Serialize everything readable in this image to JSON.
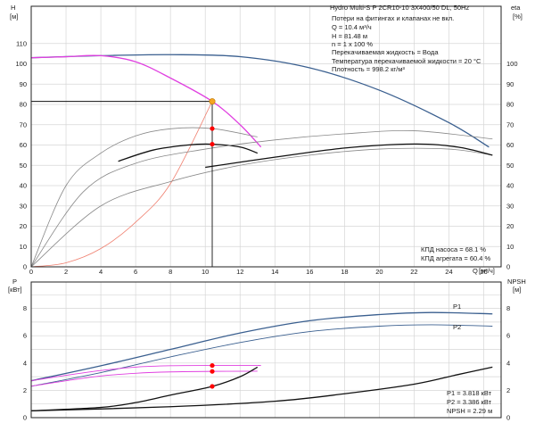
{
  "chart_data": [
    {
      "type": "line",
      "panel": "head-efficiency",
      "left_axis": {
        "label": "H",
        "unit": "[м]",
        "ylim": [
          0,
          120
        ],
        "ticks": [
          "0",
          "10",
          "20",
          "30",
          "40",
          "50",
          "60",
          "70",
          "80",
          "90",
          "100",
          "110"
        ]
      },
      "right_axis": {
        "label": "eta",
        "unit": "[%]",
        "ylim": [
          0,
          120
        ],
        "ticks": [
          "0",
          "10",
          "20",
          "30",
          "40",
          "50",
          "60",
          "70",
          "80",
          "90",
          "100"
        ]
      },
      "x_axis": {
        "label": "Q",
        "unit": "[м³/ч]",
        "xlim": [
          0,
          27
        ],
        "ticks": [
          "0",
          "2",
          "4",
          "6",
          "8",
          "10",
          "12",
          "14",
          "16",
          "18",
          "20",
          "22",
          "24",
          "26"
        ]
      },
      "grid": true,
      "info_lines": [
        "Hydro Multi-S P 2CR10-10 3X400/50 DL, 50Hz",
        "Потери на фитингах и клапанах не вкл.",
        "Q = 10.4 м³/ч",
        "H = 81.48 м",
        "n = 1 x 100 %",
        "Перекачиваемая жидкость = Вода",
        "Температура перекачиваемой жидкости = 20 °C",
        "Плотность = 998.2 кг/м³"
      ],
      "bottom_notes": [
        "КПД насоса = 68.1 %",
        "КПД агрегата = 60.4 %"
      ],
      "series": [
        {
          "role": "head-multi-pump",
          "color": "#3a5f8f",
          "points": [
            [
              0,
              103
            ],
            [
              4,
              104
            ],
            [
              8,
              104.5
            ],
            [
              12,
              103.5
            ],
            [
              16,
              98
            ],
            [
              20,
              87
            ],
            [
              24,
              71
            ],
            [
              26.3,
              59
            ]
          ]
        },
        {
          "role": "head-single-pump",
          "color": "#e040e0",
          "points": [
            [
              0,
              103
            ],
            [
              2,
              103.5
            ],
            [
              4,
              104
            ],
            [
              6,
              101
            ],
            [
              8,
              93
            ],
            [
              10.4,
              81.5
            ],
            [
              12,
              70
            ],
            [
              13.2,
              59
            ]
          ]
        },
        {
          "role": "system-curve",
          "color": "#f08070",
          "points": [
            [
              0,
              0
            ],
            [
              2,
              2
            ],
            [
              4,
              9
            ],
            [
              6,
              22
            ],
            [
              8,
              41
            ],
            [
              10.4,
              81.5
            ]
          ]
        },
        {
          "role": "efficiency-pump-1",
          "color": "#888888",
          "points": [
            [
              0,
              0
            ],
            [
              2,
              40
            ],
            [
              4,
              56
            ],
            [
              6,
              64.5
            ],
            [
              8,
              68
            ],
            [
              10.4,
              68.1
            ],
            [
              13,
              64
            ]
          ]
        },
        {
          "role": "efficiency-unit-1",
          "color": "#111111",
          "points": [
            [
              5,
              52
            ],
            [
              7,
              57.5
            ],
            [
              9,
              60
            ],
            [
              10.4,
              60.4
            ],
            [
              12,
              59
            ],
            [
              13,
              56
            ]
          ]
        },
        {
          "role": "efficiency-pump-2",
          "color": "#888888",
          "points": [
            [
              0,
              0
            ],
            [
              3,
              37
            ],
            [
              6,
              51
            ],
            [
              10,
              58
            ],
            [
              14,
              62.5
            ],
            [
              18,
              65.5
            ],
            [
              22,
              67
            ],
            [
              26.5,
              63
            ]
          ]
        },
        {
          "role": "efficiency-pump-3",
          "color": "#888888",
          "points": [
            [
              0,
              0
            ],
            [
              4,
              30
            ],
            [
              8,
              42
            ],
            [
              12,
              50
            ],
            [
              16,
              55
            ],
            [
              20,
              58
            ],
            [
              24,
              58
            ],
            [
              26.5,
              55
            ]
          ]
        },
        {
          "role": "efficiency-unit-2",
          "color": "#111111",
          "points": [
            [
              10,
              49
            ],
            [
              14,
              54
            ],
            [
              18,
              58.5
            ],
            [
              22,
              60.5
            ],
            [
              24.5,
              59
            ],
            [
              26.5,
              55
            ]
          ]
        }
      ],
      "operating_point": {
        "q": 10.4,
        "h": 81.48,
        "color": "#f5a623"
      },
      "markers": [
        {
          "q": 10.4,
          "value": 68.1,
          "color": "#ff0000"
        },
        {
          "q": 10.4,
          "value": 60.4,
          "color": "#ff0000"
        }
      ]
    },
    {
      "type": "line",
      "panel": "power-npsh",
      "left_axis": {
        "label": "P",
        "unit": "[кВт]",
        "ylim": [
          0,
          9
        ],
        "ticks": [
          "0",
          "2",
          "4",
          "6",
          "8"
        ]
      },
      "right_axis": {
        "label": "NPSH",
        "unit": "[м]",
        "ylim": [
          0,
          9
        ],
        "ticks": [
          "0",
          "2",
          "4",
          "6",
          "8"
        ]
      },
      "x_axis": {
        "xlim": [
          0,
          27
        ]
      },
      "grid": true,
      "bottom_notes": [
        "P1 = 3.818 кВт",
        "P2 = 3.386 кВт",
        "NPSH = 2.29 м"
      ],
      "series": [
        {
          "name": "P1",
          "role": "p1-multi",
          "color": "#3a5f8f",
          "points": [
            [
              0,
              2.7
            ],
            [
              4,
              3.8
            ],
            [
              8,
              5
            ],
            [
              12,
              6.2
            ],
            [
              16,
              7.1
            ],
            [
              20,
              7.55
            ],
            [
              23,
              7.7
            ],
            [
              26.5,
              7.6
            ]
          ]
        },
        {
          "name": "P2",
          "role": "p2-multi",
          "color": "#3a5f8f",
          "points": [
            [
              0,
              2.3
            ],
            [
              4,
              3.3
            ],
            [
              8,
              4.45
            ],
            [
              12,
              5.5
            ],
            [
              16,
              6.3
            ],
            [
              20,
              6.7
            ],
            [
              23,
              6.8
            ],
            [
              26.5,
              6.7
            ]
          ]
        },
        {
          "role": "p1-single",
          "color": "#e040e0",
          "points": [
            [
              0,
              2.7
            ],
            [
              2,
              3.1
            ],
            [
              4,
              3.45
            ],
            [
              6,
              3.7
            ],
            [
              8,
              3.8
            ],
            [
              10.4,
              3.82
            ],
            [
              13,
              3.82
            ]
          ]
        },
        {
          "role": "p2-single",
          "color": "#e040e0",
          "points": [
            [
              0,
              2.3
            ],
            [
              2,
              2.7
            ],
            [
              4,
              3.05
            ],
            [
              6,
              3.25
            ],
            [
              8,
              3.35
            ],
            [
              10.4,
              3.39
            ],
            [
              13,
              3.4
            ]
          ]
        },
        {
          "role": "npsh-single",
          "color": "#111111",
          "points": [
            [
              0,
              0.5
            ],
            [
              4,
              0.75
            ],
            [
              6,
              1.1
            ],
            [
              8,
              1.65
            ],
            [
              10.4,
              2.29
            ],
            [
              12,
              3.0
            ],
            [
              13,
              3.7
            ]
          ]
        },
        {
          "role": "npsh-multi",
          "color": "#111111",
          "points": [
            [
              0,
              0.5
            ],
            [
              8,
              0.8
            ],
            [
              14,
              1.2
            ],
            [
              18,
              1.75
            ],
            [
              22,
              2.45
            ],
            [
              24.5,
              3.15
            ],
            [
              26.5,
              3.7
            ]
          ]
        }
      ],
      "markers": [
        {
          "q": 10.4,
          "value": 3.818,
          "color": "#ff0000"
        },
        {
          "q": 10.4,
          "value": 3.386,
          "color": "#ff0000"
        },
        {
          "q": 10.4,
          "value": 2.29,
          "color": "#ff0000"
        }
      ]
    }
  ]
}
